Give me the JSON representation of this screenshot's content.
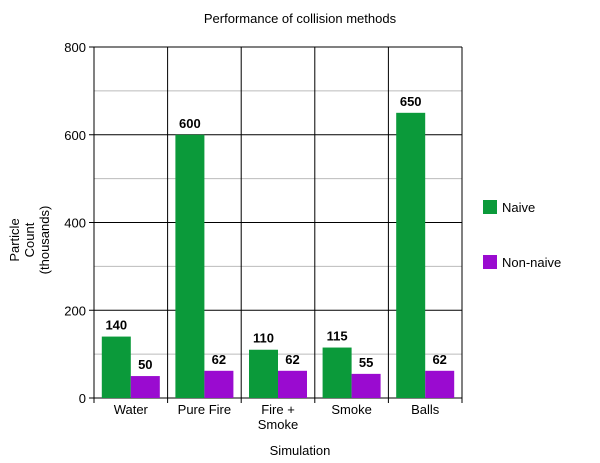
{
  "chart_data": {
    "type": "bar",
    "title": "Performance of collision methods",
    "xlabel": "Simulation",
    "ylabel_lines": [
      "Particle",
      "Count",
      "(thousands)"
    ],
    "categories": [
      [
        "Water"
      ],
      [
        "Pure Fire"
      ],
      [
        "Fire +",
        "Smoke"
      ],
      [
        "Smoke"
      ],
      [
        "Balls"
      ]
    ],
    "series": [
      {
        "name": "Naive",
        "color": "#0b9a3a",
        "values": [
          140,
          600,
          110,
          115,
          650
        ]
      },
      {
        "name": "Non-naive",
        "color": "#9a0bd0",
        "values": [
          50,
          62,
          62,
          55,
          62
        ]
      }
    ],
    "ylim": [
      0,
      800
    ],
    "yticks": [
      0,
      200,
      400,
      600,
      800
    ],
    "minor_grid_step": 100,
    "grid": true,
    "legend": "right"
  }
}
